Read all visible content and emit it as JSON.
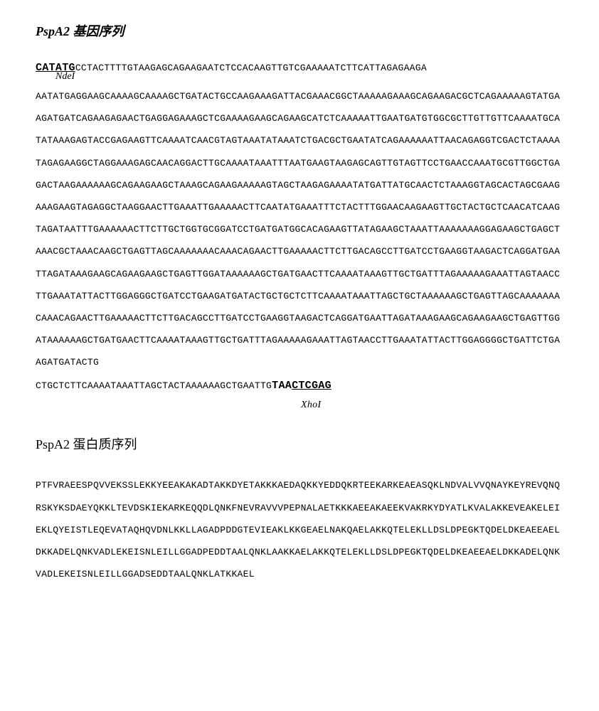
{
  "dna": {
    "title": "PspA2 基因序列",
    "start_site": "CATATG",
    "start_enzyme": "NdeI",
    "first_line_rest": "CCTACTTTTGTAAGAGCAGAAGAATCTCCACAAGTTGTCGAAAAATCTTCATTAGAGAAGA",
    "body": "AATATGAGGAAGCAAAAGCAAAAGCTGATACTGCCAAGAAAGATTACGAAACGGCTAAAAAGAAAGCAGAAGACGCTCAGAAAAAGTATGAAGATGATCAGAAGAGAACTGAGGAGAAAGCTCGAAAAGAAGCAGAAGCATCTCAAAAATTGAATGATGTGGCGCTTGTTGTTCAAAATGCATATAAAGAGTACCGAGAAGTTCAAAATCAACGTAGTAAATATAAATCTGACGCTGAATATCAGAAAAAATTAACAGAGGTCGACTCTAAAATAGAGAAGGCTAGGAAAGAGCAACAGGACTTGCAAAATAAATTTAATGAAGTAAGAGCAGTTGTAGTTCCTGAACCAAATGCGTTGGCTGAGACTAAGAAAAAAGCAGAAGAAGCTAAAGCAGAAGAAAAAGTAGCTAAGAGAAAATATGATTATGCAACTCTAAAGGTAGCACTAGCGAAGAAAGAAGTAGAGGCTAAGGAACTTGAAATTGAAAAACTTCAATATGAAATTTCTACTTTGGAACAAGAAGTTGCTACTGCTCAACATCAAGTAGATAATTTGAAAAAACTTCTTGCTGGTGCGGATCCTGATGATGGCACAGAAGTTATAGAAGCTAAATTAAAAAAAGGAGAAGCTGAGCTAAACGCTAAACAAGCTGAGTTAGCAAAAAAACAAACAGAACTTGAAAAACTTCTTGACAGCCTTGATCCTGAAGGTAAGACTCAGGATGAATTAGATAAAGAAGCAGAAGAAGCTGAGTTGGATAAAAAAGCTGATGAACTTCAAAATAAAGTTGCTGATTTAGAAAAAGAAATTAGTAACCTTGAAATATTACTTGGAGGGCTGATCCTGAAGATGATACTGCTGCTCTTCAAAATAAATTAGCTGCTAAAAAAGCTGAGTTAGCAAAAAAACAAACAGAACTTGAAAAACTTCTTGACAGCCTTGATCCTGAAGGTAAGACTCAGGATGAATTAGATAAAGAAGCAGAAGAAGCTGAGTTGGATAAAAAAGCTGATGAACTTCAAAATAAAGTTGCTGATTTAGAAAAAGAAATTAGTAACCTTGAAATATTACTTGGAGGGGCTGATTCTGAAGATGATACTG",
    "last_line_prefix": "CTGCTCTTCAAAATAAATTAGCTACTAAAAAAGCTGAATTG",
    "stop_codon": "TAA",
    "end_site": "CTCGAG",
    "end_enzyme": "XhoI"
  },
  "protein": {
    "title": "PspA2 蛋白质序列",
    "sequence": "PTFVRAEESPQVVEKSSLEKKYEEAKAKADTAKKDYETAKKKAEDAQKKYEDDQKRTEEKARKEAEASQKLNDVALVVQNAYKEYREVQNQRSKYKSDAEYQKKLTEVDSKIEKARKEQQDLQNKFNEVRAVVVPEPNALAETKKKAEEAKAEEKVAKRKYDYATLKVALAKKEVEAKELEIEKLQYEISTLEQEVATAQHQVDNLKKLLAGADPDDGTEVIEAKLKKGEAELNAKQAELAKKQTELEKLLDSLDPEGKTQDELDKEAEEAELDKKADELQNKVADLEKEISNLEILLGGADPEDDTAALQNKLAAKKAELAKKQTELEKLLDSLDPEGKTQDELDKEAEEAELDKKADELQNKVADLEKEISNLEILLGGADSEDDTAALQNKLATKKAEL"
  },
  "styling": {
    "background_color": "#ffffff",
    "text_color": "#000000",
    "title_fontsize": 18,
    "sequence_fontsize": 13,
    "enzyme_fontsize": 14,
    "line_height": 2.4,
    "sequence_font": "Courier New",
    "title_font": "Times New Roman"
  }
}
